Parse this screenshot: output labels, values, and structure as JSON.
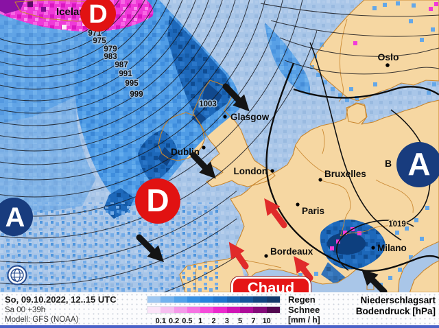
{
  "map": {
    "region_label": "Iceland",
    "cities": [
      {
        "name": "Glasgow"
      },
      {
        "name": "Dublin"
      },
      {
        "name": "London"
      },
      {
        "name": "Bruxelles"
      },
      {
        "name": "Paris"
      },
      {
        "name": "Bordeaux"
      },
      {
        "name": "Milano"
      },
      {
        "name": "Oslo"
      },
      {
        "name": "B"
      }
    ],
    "isobar_labels": [
      "971",
      "975",
      "979",
      "983",
      "987",
      "991",
      "995",
      "999",
      "1003",
      "1019"
    ],
    "pressure_centers": [
      {
        "letter": "D"
      },
      {
        "letter": "D"
      },
      {
        "letter": "A"
      },
      {
        "letter": "A"
      }
    ],
    "annotation_label": "Chaud",
    "colors": {
      "low_center": "#e11212",
      "high_center": "#183c7e",
      "land": "#f6d7a2",
      "coastline": "#c8862e",
      "sea": "#a9c6e8",
      "warm_arrow": "#e02a2a",
      "cold_arrow": "#141414"
    }
  },
  "footer": {
    "datetime_line": "So, 09.10.2022, 12..15 UTC",
    "run_line": "Sa 00 +39h",
    "model_line": "Modell: GFS (NOAA)",
    "legend": {
      "rain_label": "Regen",
      "snow_label": "Schnee",
      "unit_label": "[mm / h]",
      "ticks": [
        "0.1",
        "0.2",
        "0.5",
        "1",
        "2",
        "3",
        "5",
        "7",
        "10"
      ],
      "rain_colors": [
        "#9fc8f2",
        "#72b2ee",
        "#51a2ea",
        "#3590e4",
        "#2583dc",
        "#1d74cc",
        "#1864b4",
        "#13549a",
        "#0f4480",
        "#12386a"
      ],
      "snow_colors": [
        "#fbe4f8",
        "#f6bff0",
        "#f49ae9",
        "#f573e2",
        "#f54cda",
        "#ea28cc",
        "#cf14b4",
        "#ad0c98",
        "#830a78",
        "#520850"
      ]
    },
    "right_line1": "Niederschlagsart",
    "right_line2": "Bodendruck [hPa]"
  }
}
